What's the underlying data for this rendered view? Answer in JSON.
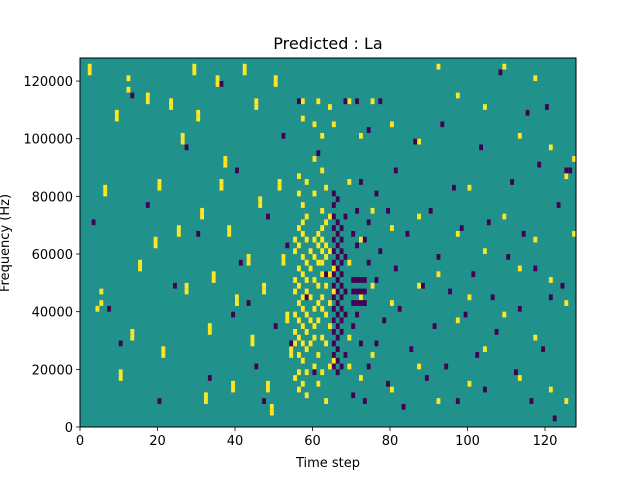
{
  "chart_data": {
    "type": "heatmap",
    "title": "Predicted : La",
    "xlabel": "Time step",
    "ylabel": "Frequency (Hz)",
    "xlim": [
      0,
      128
    ],
    "ylim": [
      0,
      128000
    ],
    "x_ticks": [
      0,
      20,
      40,
      60,
      80,
      100,
      120
    ],
    "x_tick_labels": [
      "0",
      "20",
      "40",
      "60",
      "80",
      "100",
      "120"
    ],
    "y_ticks": [
      0,
      20000,
      40000,
      60000,
      80000,
      100000,
      120000
    ],
    "y_tick_labels": [
      "0",
      "20000",
      "40000",
      "60000",
      "80000",
      "100000",
      "120000"
    ],
    "colormap": "viridis",
    "background_value": 0,
    "colors": {
      "low": "#440154",
      "mid": "#21918c",
      "high": "#fde725"
    },
    "cell_size": {
      "time_steps": 1,
      "frequency_hz": 2000
    },
    "high_cells": [
      [
        2,
        124
      ],
      [
        2,
        122
      ],
      [
        4,
        40
      ],
      [
        5,
        46
      ],
      [
        5,
        42
      ],
      [
        6,
        82
      ],
      [
        6,
        80
      ],
      [
        9,
        108
      ],
      [
        9,
        106
      ],
      [
        10,
        18
      ],
      [
        10,
        16
      ],
      [
        12,
        120
      ],
      [
        12,
        116
      ],
      [
        13,
        32
      ],
      [
        13,
        30
      ],
      [
        15,
        56
      ],
      [
        15,
        54
      ],
      [
        17,
        114
      ],
      [
        17,
        112
      ],
      [
        19,
        64
      ],
      [
        19,
        62
      ],
      [
        20,
        84
      ],
      [
        20,
        82
      ],
      [
        21,
        26
      ],
      [
        21,
        24
      ],
      [
        23,
        112
      ],
      [
        23,
        110
      ],
      [
        25,
        68
      ],
      [
        25,
        66
      ],
      [
        26,
        100
      ],
      [
        26,
        98
      ],
      [
        27,
        48
      ],
      [
        27,
        46
      ],
      [
        29,
        124
      ],
      [
        29,
        122
      ],
      [
        30,
        108
      ],
      [
        30,
        106
      ],
      [
        31,
        74
      ],
      [
        31,
        72
      ],
      [
        32,
        10
      ],
      [
        32,
        8
      ],
      [
        33,
        34
      ],
      [
        33,
        32
      ],
      [
        34,
        52
      ],
      [
        34,
        50
      ],
      [
        35,
        120
      ],
      [
        35,
        118
      ],
      [
        36,
        84
      ],
      [
        36,
        82
      ],
      [
        37,
        92
      ],
      [
        37,
        90
      ],
      [
        38,
        68
      ],
      [
        38,
        66
      ],
      [
        39,
        14
      ],
      [
        39,
        12
      ],
      [
        40,
        44
      ],
      [
        40,
        42
      ],
      [
        42,
        124
      ],
      [
        42,
        122
      ],
      [
        43,
        58
      ],
      [
        43,
        56
      ],
      [
        44,
        30
      ],
      [
        44,
        28
      ],
      [
        45,
        112
      ],
      [
        45,
        110
      ],
      [
        46,
        78
      ],
      [
        46,
        76
      ],
      [
        47,
        48
      ],
      [
        47,
        46
      ],
      [
        48,
        14
      ],
      [
        48,
        12
      ],
      [
        49,
        6
      ],
      [
        49,
        4
      ],
      [
        50,
        120
      ],
      [
        50,
        118
      ],
      [
        51,
        84
      ],
      [
        51,
        82
      ],
      [
        52,
        58
      ],
      [
        52,
        56
      ],
      [
        53,
        38
      ],
      [
        53,
        36
      ],
      [
        54,
        26
      ],
      [
        54,
        24
      ],
      [
        55,
        64
      ],
      [
        55,
        60
      ],
      [
        55,
        50
      ],
      [
        55,
        46
      ],
      [
        55,
        38
      ],
      [
        55,
        32
      ],
      [
        55,
        28
      ],
      [
        55,
        16
      ],
      [
        56,
        86
      ],
      [
        56,
        80
      ],
      [
        56,
        68
      ],
      [
        56,
        62
      ],
      [
        56,
        54
      ],
      [
        56,
        48
      ],
      [
        56,
        42
      ],
      [
        56,
        36
      ],
      [
        56,
        30
      ],
      [
        56,
        24
      ],
      [
        56,
        18
      ],
      [
        56,
        12
      ],
      [
        57,
        112
      ],
      [
        57,
        106
      ],
      [
        57,
        76
      ],
      [
        57,
        70
      ],
      [
        57,
        66
      ],
      [
        57,
        58
      ],
      [
        57,
        52
      ],
      [
        57,
        44
      ],
      [
        57,
        40
      ],
      [
        57,
        34
      ],
      [
        57,
        28
      ],
      [
        57,
        22
      ],
      [
        57,
        14
      ],
      [
        58,
        84
      ],
      [
        58,
        72
      ],
      [
        58,
        64
      ],
      [
        58,
        56
      ],
      [
        58,
        50
      ],
      [
        58,
        46
      ],
      [
        58,
        38
      ],
      [
        58,
        32
      ],
      [
        58,
        26
      ],
      [
        58,
        18
      ],
      [
        58,
        10
      ],
      [
        59,
        60
      ],
      [
        59,
        54
      ],
      [
        59,
        44
      ],
      [
        59,
        36
      ],
      [
        59,
        28
      ],
      [
        60,
        104
      ],
      [
        60,
        92
      ],
      [
        60,
        80
      ],
      [
        60,
        64
      ],
      [
        60,
        58
      ],
      [
        60,
        50
      ],
      [
        60,
        40
      ],
      [
        60,
        34
      ],
      [
        60,
        30
      ],
      [
        60,
        20
      ],
      [
        61,
        112
      ],
      [
        61,
        66
      ],
      [
        61,
        62
      ],
      [
        61,
        56
      ],
      [
        61,
        48
      ],
      [
        61,
        42
      ],
      [
        61,
        36
      ],
      [
        61,
        24
      ],
      [
        61,
        14
      ],
      [
        62,
        100
      ],
      [
        62,
        88
      ],
      [
        62,
        74
      ],
      [
        62,
        68
      ],
      [
        62,
        64
      ],
      [
        62,
        60
      ],
      [
        62,
        56
      ],
      [
        62,
        52
      ],
      [
        62,
        44
      ],
      [
        62,
        40
      ],
      [
        62,
        30
      ],
      [
        62,
        18
      ],
      [
        63,
        82
      ],
      [
        63,
        70
      ],
      [
        63,
        62
      ],
      [
        63,
        58
      ],
      [
        63,
        48
      ],
      [
        63,
        38
      ],
      [
        63,
        28
      ],
      [
        63,
        8
      ],
      [
        64,
        110
      ],
      [
        64,
        72
      ],
      [
        64,
        60
      ],
      [
        64,
        52
      ],
      [
        64,
        42
      ],
      [
        64,
        34
      ],
      [
        64,
        20
      ],
      [
        65,
        104
      ],
      [
        65,
        64
      ],
      [
        65,
        54
      ],
      [
        65,
        46
      ],
      [
        65,
        36
      ],
      [
        65,
        22
      ],
      [
        69,
        112
      ],
      [
        69,
        84
      ],
      [
        69,
        56
      ],
      [
        69,
        30
      ],
      [
        69,
        20
      ],
      [
        72,
        100
      ],
      [
        72,
        64
      ],
      [
        72,
        44
      ],
      [
        72,
        16
      ],
      [
        75,
        112
      ],
      [
        75,
        74
      ],
      [
        75,
        48
      ],
      [
        75,
        24
      ],
      [
        80,
        104
      ],
      [
        80,
        68
      ],
      [
        80,
        42
      ],
      [
        80,
        12
      ],
      [
        87,
        98
      ],
      [
        87,
        72
      ],
      [
        87,
        48
      ],
      [
        87,
        20
      ],
      [
        92,
        124
      ],
      [
        92,
        52
      ],
      [
        92,
        8
      ],
      [
        97,
        114
      ],
      [
        97,
        66
      ],
      [
        97,
        36
      ],
      [
        100,
        82
      ],
      [
        100,
        44
      ],
      [
        100,
        14
      ],
      [
        104,
        110
      ],
      [
        104,
        60
      ],
      [
        104,
        26
      ],
      [
        109,
        124
      ],
      [
        109,
        72
      ],
      [
        109,
        38
      ],
      [
        113,
        100
      ],
      [
        113,
        54
      ],
      [
        113,
        16
      ],
      [
        117,
        120
      ],
      [
        117,
        64
      ],
      [
        117,
        30
      ],
      [
        121,
        96
      ],
      [
        121,
        50
      ],
      [
        121,
        12
      ],
      [
        125,
        86
      ],
      [
        125,
        42
      ],
      [
        125,
        8
      ],
      [
        127,
        92
      ],
      [
        127,
        66
      ]
    ],
    "low_cells": [
      [
        3,
        70
      ],
      [
        7,
        40
      ],
      [
        10,
        28
      ],
      [
        13,
        114
      ],
      [
        17,
        76
      ],
      [
        20,
        8
      ],
      [
        24,
        48
      ],
      [
        27,
        96
      ],
      [
        30,
        66
      ],
      [
        33,
        16
      ],
      [
        36,
        118
      ],
      [
        39,
        38
      ],
      [
        40,
        88
      ],
      [
        41,
        56
      ],
      [
        43,
        42
      ],
      [
        45,
        20
      ],
      [
        47,
        8
      ],
      [
        48,
        72
      ],
      [
        50,
        34
      ],
      [
        52,
        100
      ],
      [
        53,
        62
      ],
      [
        54,
        28
      ],
      [
        56,
        112
      ],
      [
        58,
        44
      ],
      [
        60,
        18
      ],
      [
        61,
        94
      ],
      [
        63,
        52
      ],
      [
        65,
        80
      ],
      [
        65,
        76
      ],
      [
        65,
        72
      ],
      [
        65,
        68
      ],
      [
        65,
        64
      ],
      [
        65,
        60
      ],
      [
        65,
        56
      ],
      [
        65,
        52
      ],
      [
        65,
        48
      ],
      [
        65,
        44
      ],
      [
        65,
        40
      ],
      [
        65,
        36
      ],
      [
        65,
        32
      ],
      [
        65,
        28
      ],
      [
        65,
        24
      ],
      [
        65,
        20
      ],
      [
        66,
        78
      ],
      [
        66,
        70
      ],
      [
        66,
        66
      ],
      [
        66,
        62
      ],
      [
        66,
        58
      ],
      [
        66,
        54
      ],
      [
        66,
        50
      ],
      [
        66,
        46
      ],
      [
        66,
        42
      ],
      [
        66,
        38
      ],
      [
        66,
        34
      ],
      [
        66,
        30
      ],
      [
        66,
        26
      ],
      [
        66,
        22
      ],
      [
        66,
        18
      ],
      [
        67,
        68
      ],
      [
        67,
        64
      ],
      [
        67,
        60
      ],
      [
        67,
        56
      ],
      [
        67,
        52
      ],
      [
        67,
        48
      ],
      [
        67,
        44
      ],
      [
        67,
        40
      ],
      [
        67,
        36
      ],
      [
        67,
        32
      ],
      [
        67,
        20
      ],
      [
        68,
        112
      ],
      [
        68,
        72
      ],
      [
        68,
        58
      ],
      [
        68,
        46
      ],
      [
        68,
        38
      ],
      [
        68,
        24
      ],
      [
        70,
        66
      ],
      [
        70,
        50
      ],
      [
        70,
        46
      ],
      [
        70,
        42
      ],
      [
        70,
        34
      ],
      [
        70,
        10
      ],
      [
        71,
        112
      ],
      [
        71,
        74
      ],
      [
        71,
        62
      ],
      [
        71,
        50
      ],
      [
        71,
        46
      ],
      [
        71,
        42
      ],
      [
        71,
        38
      ],
      [
        72,
        84
      ],
      [
        72,
        50
      ],
      [
        72,
        46
      ],
      [
        72,
        42
      ],
      [
        72,
        28
      ],
      [
        73,
        64
      ],
      [
        73,
        50
      ],
      [
        73,
        46
      ],
      [
        73,
        42
      ],
      [
        73,
        8
      ],
      [
        74,
        102
      ],
      [
        74,
        70
      ],
      [
        74,
        56
      ],
      [
        74,
        20
      ],
      [
        76,
        80
      ],
      [
        76,
        50
      ],
      [
        76,
        28
      ],
      [
        77,
        112
      ],
      [
        77,
        60
      ],
      [
        78,
        36
      ],
      [
        79,
        74
      ],
      [
        79,
        14
      ],
      [
        81,
        88
      ],
      [
        81,
        54
      ],
      [
        82,
        40
      ],
      [
        83,
        6
      ],
      [
        84,
        66
      ],
      [
        85,
        26
      ],
      [
        86,
        98
      ],
      [
        88,
        48
      ],
      [
        89,
        16
      ],
      [
        90,
        74
      ],
      [
        91,
        34
      ],
      [
        92,
        58
      ],
      [
        93,
        104
      ],
      [
        94,
        20
      ],
      [
        95,
        46
      ],
      [
        96,
        82
      ],
      [
        97,
        8
      ],
      [
        98,
        68
      ],
      [
        99,
        38
      ],
      [
        101,
        52
      ],
      [
        102,
        24
      ],
      [
        103,
        96
      ],
      [
        104,
        12
      ],
      [
        105,
        70
      ],
      [
        106,
        44
      ],
      [
        107,
        32
      ],
      [
        108,
        122
      ],
      [
        110,
        58
      ],
      [
        111,
        84
      ],
      [
        112,
        18
      ],
      [
        113,
        40
      ],
      [
        114,
        66
      ],
      [
        115,
        108
      ],
      [
        116,
        8
      ],
      [
        117,
        54
      ],
      [
        118,
        90
      ],
      [
        119,
        26
      ],
      [
        120,
        110
      ],
      [
        121,
        44
      ],
      [
        122,
        2
      ],
      [
        123,
        76
      ],
      [
        124,
        48
      ],
      [
        125,
        88
      ],
      [
        126,
        88
      ]
    ]
  }
}
